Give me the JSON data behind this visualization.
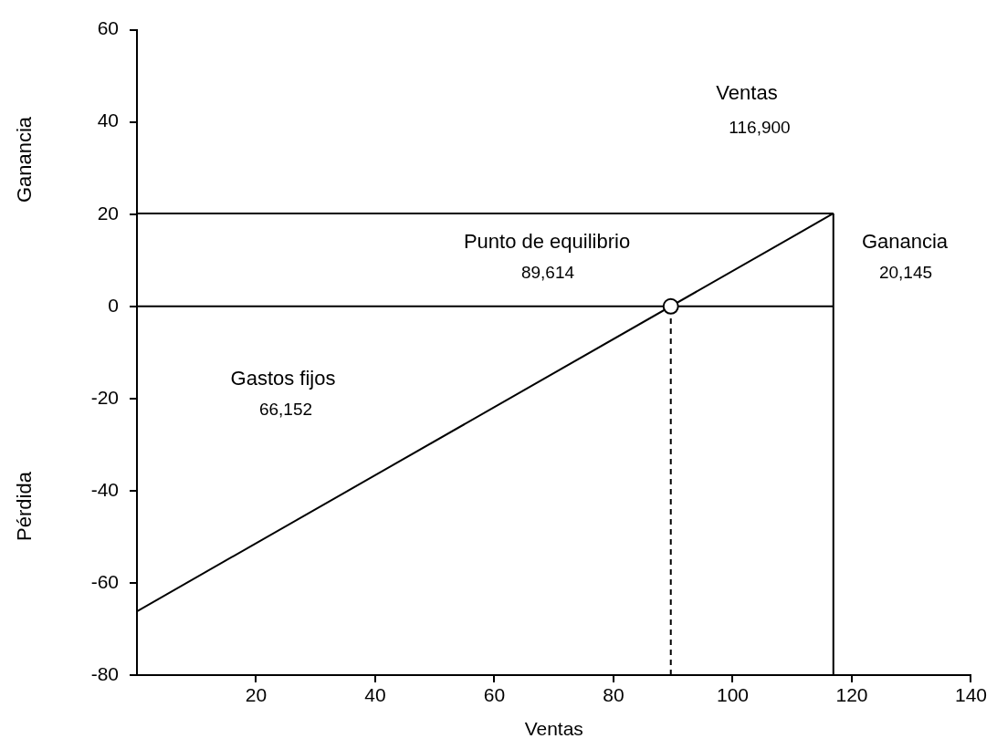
{
  "chart_data": {
    "type": "line",
    "xlabel": "Ventas",
    "ylabel": "Ganancia",
    "xlim": [
      0,
      140
    ],
    "xticks": [
      20,
      40,
      60,
      80,
      100,
      120,
      140
    ],
    "ylim": [
      -80,
      60
    ],
    "yticks": [
      -80,
      -60,
      -40,
      -20,
      0,
      20,
      40,
      60
    ],
    "grid": false,
    "legend": false,
    "marker": "none",
    "series": [
      {
        "type": "line",
        "color": "#000000",
        "x": [
          0,
          116.9
        ],
        "values": [
          -66.152,
          20.145
        ]
      },
      {
        "type": "line",
        "color": "#000000",
        "x": [
          0,
          116.9
        ],
        "values": [
          20.145,
          20.145
        ]
      },
      {
        "type": "line",
        "color": "#000000",
        "x": [
          0,
          116.9
        ],
        "values": [
          0,
          0
        ]
      },
      {
        "type": "line",
        "color": "#000000",
        "x": [
          116.9,
          116.9
        ],
        "values": [
          -80,
          20.145
        ]
      },
      {
        "type": "line",
        "color": "#000000",
        "line_style": "dashed",
        "x": [
          89.614,
          89.614
        ],
        "values": [
          -80,
          0
        ]
      },
      {
        "type": "scatter",
        "color": "#000000",
        "marker": "circle",
        "x": [
          89.614
        ],
        "values": [
          0
        ]
      }
    ],
    "annotations": [
      "Ventas",
      "116,900",
      "Punto de equilibrio",
      "89,614",
      "Ganancia",
      "20,145",
      "Gastos fijos",
      "66,152",
      "Pérdida"
    ]
  }
}
